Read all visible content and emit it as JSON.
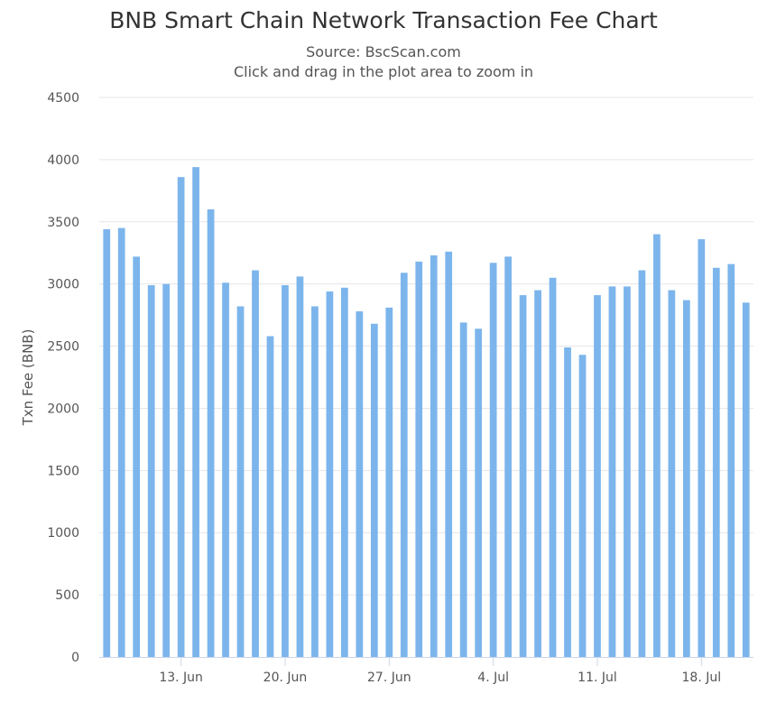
{
  "chart_data": {
    "type": "bar",
    "title": "BNB Smart Chain Network Transaction Fee Chart",
    "subtitle": "Source: BscScan.com",
    "subtitle2": "Click and drag in the plot area to zoom in",
    "xlabel": "",
    "ylabel": "Txn Fee (BNB)",
    "ylim": [
      0,
      4500
    ],
    "y_ticks": [
      0,
      500,
      1000,
      1500,
      2000,
      2500,
      3000,
      3500,
      4000,
      4500
    ],
    "x_ticks": [
      {
        "label": "13. Jun",
        "date": "2022-06-13"
      },
      {
        "label": "20. Jun",
        "date": "2022-06-20"
      },
      {
        "label": "27. Jun",
        "date": "2022-06-27"
      },
      {
        "label": "4. Jul",
        "date": "2022-07-04"
      },
      {
        "label": "11. Jul",
        "date": "2022-07-11"
      },
      {
        "label": "18. Jul",
        "date": "2022-07-18"
      }
    ],
    "x": [
      "2022-06-08",
      "2022-06-09",
      "2022-06-10",
      "2022-06-11",
      "2022-06-12",
      "2022-06-13",
      "2022-06-14",
      "2022-06-15",
      "2022-06-16",
      "2022-06-17",
      "2022-06-18",
      "2022-06-19",
      "2022-06-20",
      "2022-06-21",
      "2022-06-22",
      "2022-06-23",
      "2022-06-24",
      "2022-06-25",
      "2022-06-26",
      "2022-06-27",
      "2022-06-28",
      "2022-06-29",
      "2022-06-30",
      "2022-07-01",
      "2022-07-02",
      "2022-07-03",
      "2022-07-04",
      "2022-07-05",
      "2022-07-06",
      "2022-07-07",
      "2022-07-08",
      "2022-07-09",
      "2022-07-10",
      "2022-07-11",
      "2022-07-12",
      "2022-07-13",
      "2022-07-14",
      "2022-07-15",
      "2022-07-16",
      "2022-07-17",
      "2022-07-18",
      "2022-07-19",
      "2022-07-20",
      "2022-07-21"
    ],
    "values": [
      3440,
      3450,
      3220,
      2990,
      3000,
      3860,
      3940,
      3600,
      3010,
      2820,
      3110,
      2580,
      2990,
      3060,
      2820,
      2940,
      2970,
      2780,
      2680,
      2810,
      3090,
      3180,
      3230,
      3260,
      2690,
      2640,
      3170,
      3220,
      2910,
      2950,
      3050,
      2490,
      2430,
      2910,
      2980,
      2980,
      3110,
      3400,
      2950,
      2870,
      3360,
      3130,
      3160,
      2850
    ],
    "grid": true,
    "legend": "none",
    "colors": {
      "bar": "#7cb5ec",
      "grid": "#e6e6e6",
      "axis": "#ccd6eb"
    }
  }
}
